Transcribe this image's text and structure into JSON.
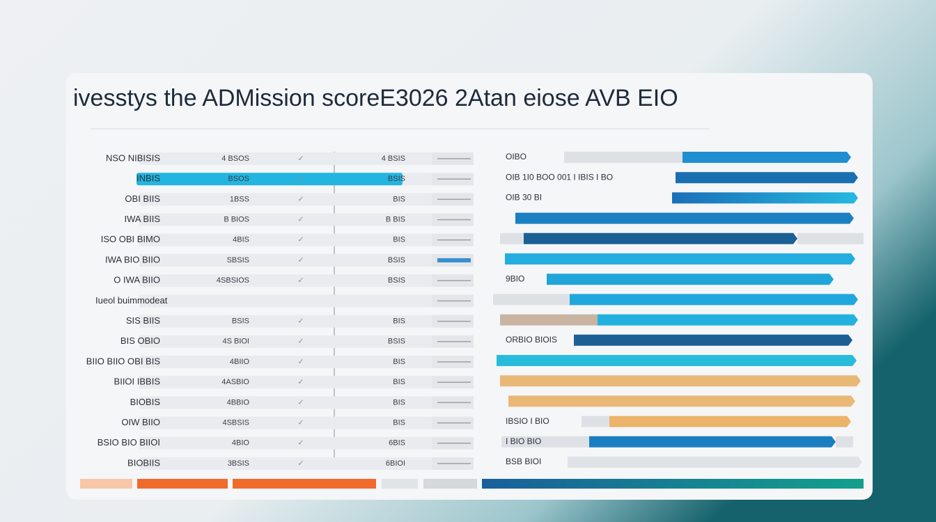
{
  "title": "ivesstys the ADMission scoreE3026 2Atan eiose AVB EIO",
  "table": {
    "rows": [
      [
        "NSO NIBISIS",
        "4 BSOS",
        "4 BSIS"
      ],
      [
        "INBIS",
        "BSOS",
        "BSIS"
      ],
      [
        "OBI BIIS",
        "1BSS",
        "BIS"
      ],
      [
        "IWA BIIS",
        "B BIOS",
        "B BIS"
      ],
      [
        "ISO OBI BIMO",
        "4BIS",
        "BIS"
      ],
      [
        "IWA BIO BIIO",
        "SBSIS",
        "BSIS"
      ],
      [
        "O IWA BIIO",
        "4SBSIOS",
        "BSIS"
      ],
      [
        "Iueol buimmodeat"
      ],
      [
        "SIS BIIS",
        "BSIS",
        "BIS"
      ],
      [
        "BIS OBIO",
        "4S BIOI",
        "BSIS"
      ],
      [
        "BIIO BIIO OBI BIS",
        "4BIIO",
        "BIS"
      ],
      [
        "BIIOI IBBIS",
        "4ASBIO",
        "BIS"
      ],
      [
        "BIOBIS",
        "4BBIO",
        "BIS"
      ],
      [
        "OIW BIIO",
        "4SBSIS",
        "BIS"
      ],
      [
        "BSIO BIO BIIOI",
        "4BIO",
        "6BIS"
      ],
      [
        "BIOBIIS",
        "3BSIS",
        "6BIOI"
      ]
    ]
  },
  "bars": {
    "labels": [
      "OIBO",
      "OIB 1I0 BOO 001 I IBIS   I BO",
      "OIB 30 BI",
      null,
      null,
      null,
      "9BIO",
      null,
      null,
      "ORBIO BIOIS",
      null,
      null,
      null,
      "IBSIO I BIO",
      "I BIO BIO",
      "BSB BIOI"
    ]
  }
}
